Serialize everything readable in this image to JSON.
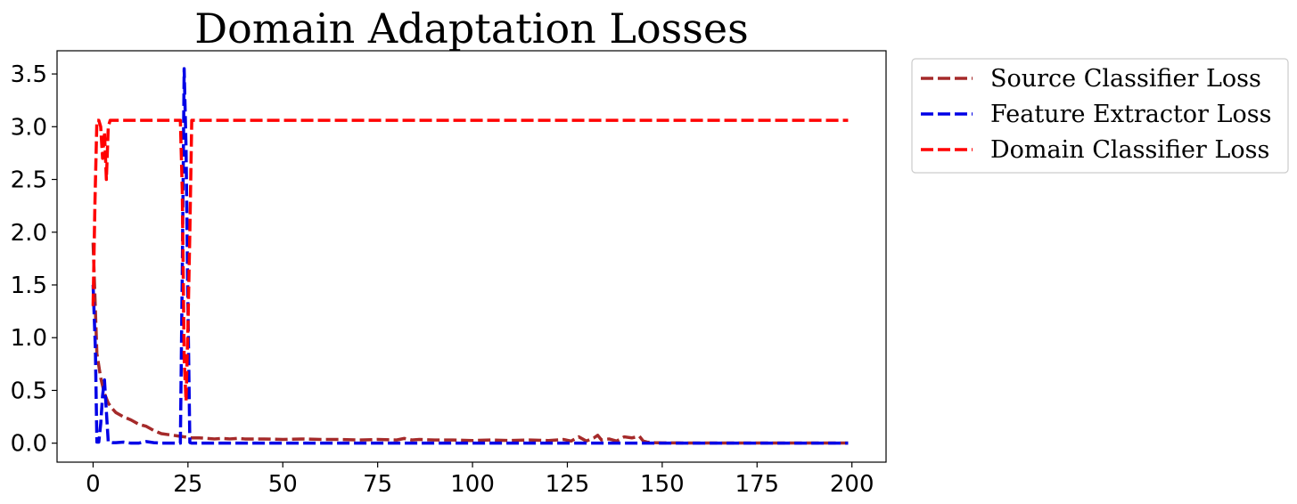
{
  "chart_data": {
    "type": "line",
    "title": "Domain Adaptation Losses",
    "xlabel": "",
    "ylabel": "",
    "xlim": [
      -9.5,
      209
    ],
    "ylim": [
      -0.18,
      3.72
    ],
    "xticks": [
      0,
      25,
      50,
      75,
      100,
      125,
      150,
      175,
      200
    ],
    "yticks": [
      0.0,
      0.5,
      1.0,
      1.5,
      2.0,
      2.5,
      3.0,
      3.5
    ],
    "xtick_labels": [
      "0",
      "25",
      "50",
      "75",
      "100",
      "125",
      "150",
      "175",
      "200"
    ],
    "ytick_labels": [
      "0.0",
      "0.5",
      "1.0",
      "1.5",
      "2.0",
      "2.5",
      "3.0",
      "3.5"
    ],
    "grid": false,
    "legend_position": "outside-upper-right",
    "series": [
      {
        "name": "Source Classifier Loss",
        "color": "#a52a2a",
        "x": [
          0,
          1,
          2,
          3,
          4,
          5,
          6,
          8,
          10,
          12,
          14,
          16,
          18,
          20,
          22,
          23,
          24,
          25,
          26,
          28,
          30,
          32,
          34,
          36,
          38,
          40,
          45,
          50,
          55,
          60,
          65,
          70,
          75,
          80,
          82,
          84,
          86,
          90,
          95,
          100,
          105,
          110,
          115,
          120,
          124,
          126,
          128,
          130,
          132,
          133,
          134,
          136,
          138,
          140,
          142,
          144,
          145,
          146,
          148,
          150,
          155,
          160,
          170,
          180,
          190,
          199
        ],
        "y": [
          1.9,
          0.85,
          0.62,
          0.47,
          0.38,
          0.33,
          0.29,
          0.25,
          0.22,
          0.18,
          0.16,
          0.12,
          0.09,
          0.08,
          0.07,
          0.065,
          0.06,
          0.055,
          0.05,
          0.05,
          0.045,
          0.04,
          0.045,
          0.04,
          0.045,
          0.04,
          0.04,
          0.035,
          0.04,
          0.035,
          0.035,
          0.03,
          0.035,
          0.03,
          0.045,
          0.03,
          0.035,
          0.03,
          0.03,
          0.025,
          0.03,
          0.025,
          0.03,
          0.025,
          0.035,
          0.02,
          0.06,
          0.02,
          0.05,
          0.075,
          0.03,
          0.04,
          0.02,
          0.06,
          0.05,
          0.065,
          0.02,
          0.01,
          0.005,
          0.003,
          0.002,
          0.001,
          0.001,
          0.001,
          0.001,
          0.001
        ]
      },
      {
        "name": "Feature Extractor Loss",
        "color": "#0000e6",
        "x": [
          0,
          0.6,
          1,
          1.5,
          2,
          2.5,
          3,
          3.5,
          4,
          5,
          6,
          8,
          10,
          12,
          14,
          16,
          18,
          20,
          22,
          23,
          23.5,
          24,
          24.5,
          25,
          25.5,
          26,
          28,
          40,
          60,
          80,
          100,
          120,
          140,
          160,
          180,
          199
        ],
        "y": [
          1.5,
          0.9,
          0.01,
          0.01,
          0.18,
          0.45,
          0.6,
          0.3,
          0.01,
          0.005,
          0.005,
          0.01,
          0.0,
          0.0,
          0.015,
          0.005,
          0.0,
          0.0,
          0.0,
          0.0,
          1.6,
          3.55,
          2.8,
          1.3,
          0.005,
          0.0,
          0.0,
          0.0,
          0.0,
          0.0,
          0.0,
          0.0,
          0.0,
          0.0,
          0.0,
          0.0
        ]
      },
      {
        "name": "Domain Classifier Loss",
        "color": "#ff0000",
        "x": [
          0,
          0.5,
          1,
          1.5,
          2,
          2.5,
          3,
          3.5,
          4,
          4.5,
          5,
          6,
          8,
          10,
          20,
          22,
          23,
          23.5,
          24,
          24.5,
          25,
          25.5,
          26,
          26.5,
          27,
          30,
          50,
          100,
          150,
          199
        ],
        "y": [
          1.3,
          2.3,
          3.06,
          3.06,
          3.0,
          2.7,
          2.95,
          2.5,
          3.0,
          3.06,
          3.06,
          3.06,
          3.06,
          3.06,
          3.06,
          3.06,
          3.06,
          2.4,
          0.8,
          0.4,
          1.1,
          2.0,
          3.06,
          3.06,
          3.06,
          3.06,
          3.06,
          3.06,
          3.06,
          3.06
        ]
      }
    ]
  }
}
